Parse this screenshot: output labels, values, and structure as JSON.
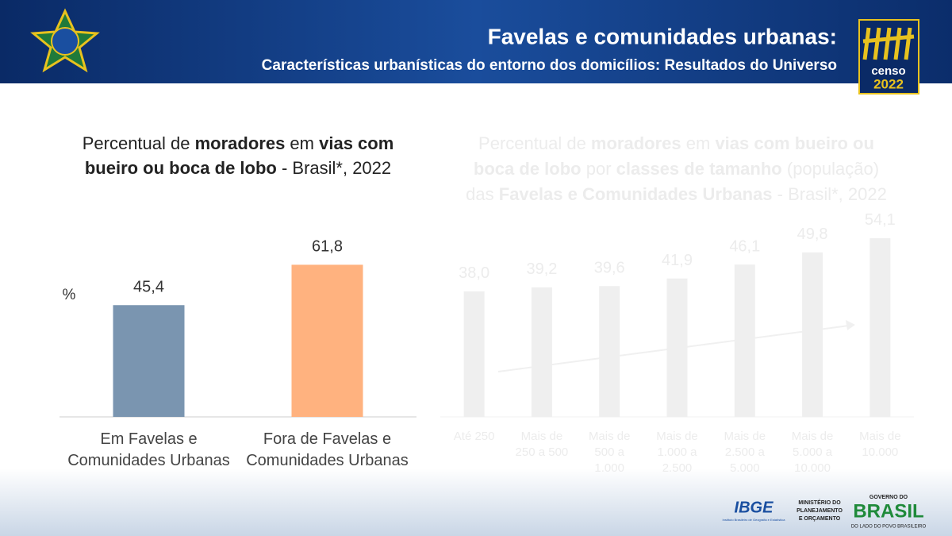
{
  "header": {
    "title": "Favelas e comunidades urbanas:",
    "subtitle": "Características urbanísticas do entorno dos domicílios: Resultados do Universo",
    "logo_text": "censo",
    "logo_year": "2022"
  },
  "footer": {
    "ibge": "IBGE",
    "ibge_sub": "Instituto Brasileiro de Geografia e Estatística",
    "ministry": [
      "MINISTÉRIO DO",
      "PLANEJAMENTO",
      "E ORÇAMENTO"
    ],
    "gov_top": "GOVERNO DO",
    "gov_name": "BRASIL",
    "gov_sub": "DO LADO DO POVO BRASILEIRO"
  },
  "chart_data": [
    {
      "type": "bar",
      "title": [
        {
          "text": "Percentual de ",
          "bold": false
        },
        {
          "text": "moradores",
          "bold": true
        },
        {
          "text": " em ",
          "bold": false
        },
        {
          "text": "vias com bueiro ou boca de lobo",
          "bold": true
        },
        {
          "text": " - Brasil*, 2022",
          "bold": false
        }
      ],
      "y_label": "%",
      "categories": [
        "Em Favelas e Comunidades Urbanas",
        "Fora de Favelas e Comunidades Urbanas"
      ],
      "values": [
        45.4,
        61.8
      ],
      "value_labels": [
        "45,4",
        "61,8"
      ],
      "colors": [
        "#7a95b0",
        "#ffb27f"
      ],
      "ylim": [
        0,
        100
      ]
    },
    {
      "type": "bar",
      "title": [
        {
          "text": "Percentual de ",
          "bold": false
        },
        {
          "text": "moradores",
          "bold": true
        },
        {
          "text": " em ",
          "bold": false
        },
        {
          "text": "vias com bueiro ou boca de lobo",
          "bold": true
        },
        {
          "text": " por ",
          "bold": false
        },
        {
          "text": "classes de tamanho",
          "bold": true
        },
        {
          "text": " (população) das ",
          "bold": false
        },
        {
          "text": "Favelas e Comunidades Urbanas",
          "bold": true
        },
        {
          "text": " - Brasil*, 2022",
          "bold": false
        }
      ],
      "categories": [
        "Até 250",
        "Mais de 250 a 500",
        "Mais de 500 a 1.000",
        "Mais de 1.000 a 2.500",
        "Mais de 2.500 a 5.000",
        "Mais de 5.000 a 10.000",
        "Mais de 10.000"
      ],
      "values": [
        38.0,
        39.2,
        39.6,
        41.9,
        46.1,
        49.8,
        54.1
      ],
      "value_labels": [
        "38,0",
        "39,2",
        "39,6",
        "41,9",
        "46,1",
        "49,8",
        "54,1"
      ],
      "color": "#efefef",
      "ylim": [
        0,
        100
      ]
    }
  ]
}
